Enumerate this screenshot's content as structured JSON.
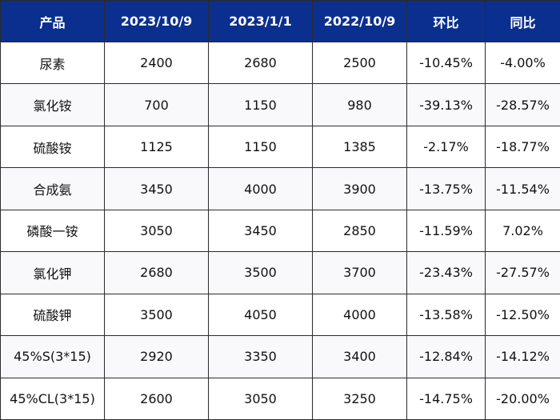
{
  "table": {
    "headers": [
      "产品",
      "2023/10/9",
      "2023/1/1",
      "2022/10/9",
      "环比",
      "同比"
    ],
    "rows": [
      [
        "尿素",
        "2400",
        "2680",
        "2500",
        "-10.45%",
        "-4.00%"
      ],
      [
        "氯化铵",
        "700",
        "1150",
        "980",
        "-39.13%",
        "-28.57%"
      ],
      [
        "硫酸铵",
        "1125",
        "1150",
        "1385",
        "-2.17%",
        "-18.77%"
      ],
      [
        "合成氨",
        "3450",
        "4000",
        "3900",
        "-13.75%",
        "-11.54%"
      ],
      [
        "磷酸一铵",
        "3050",
        "3450",
        "2850",
        "-11.59%",
        "7.02%"
      ],
      [
        "氯化钾",
        "2680",
        "3500",
        "3700",
        "-23.43%",
        "-27.57%"
      ],
      [
        "硫酸钾",
        "3500",
        "4050",
        "4000",
        "-13.58%",
        "-12.50%"
      ],
      [
        "45%S(3*15)",
        "2920",
        "3350",
        "3400",
        "-12.84%",
        "-14.12%"
      ],
      [
        "45%CL(3*15)",
        "2600",
        "3050",
        "3250",
        "-14.75%",
        "-20.00%"
      ]
    ]
  },
  "colors": {
    "header_background": "#0b2f8f",
    "header_text": "#ffffff",
    "border": "#2b2b2b"
  }
}
